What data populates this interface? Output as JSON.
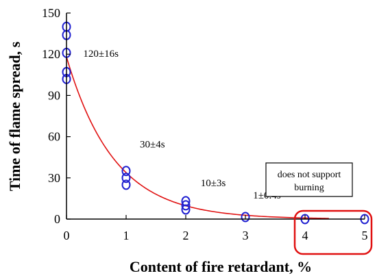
{
  "chart_data": {
    "type": "scatter",
    "xlabel": "Content of fire retardant, %",
    "ylabel": "Time of flame spread, s",
    "xlim": [
      0,
      5
    ],
    "ylim": [
      0,
      150
    ],
    "xticks": [
      "0",
      "1",
      "2",
      "3",
      "4",
      "5"
    ],
    "yticks": [
      "0",
      "30",
      "60",
      "90",
      "120",
      "150"
    ],
    "grid": false,
    "points": [
      {
        "x": 0,
        "y": 140
      },
      {
        "x": 0,
        "y": 134
      },
      {
        "x": 0,
        "y": 121
      },
      {
        "x": 0,
        "y": 107
      },
      {
        "x": 0,
        "y": 102
      },
      {
        "x": 1,
        "y": 35
      },
      {
        "x": 1,
        "y": 30
      },
      {
        "x": 1,
        "y": 25
      },
      {
        "x": 2,
        "y": 13
      },
      {
        "x": 2,
        "y": 10
      },
      {
        "x": 2,
        "y": 7
      },
      {
        "x": 3,
        "y": 1.5
      },
      {
        "x": 4,
        "y": 0
      },
      {
        "x": 5,
        "y": 0
      }
    ],
    "fit_curve": {
      "type": "exponential",
      "a": 118,
      "b": 1.25,
      "x_from": 0,
      "x_to": 4.4
    },
    "annotations": [
      {
        "text": "120±16s",
        "x": 0.28,
        "y": 118
      },
      {
        "text": "30±4s",
        "x": 1.23,
        "y": 52
      },
      {
        "text": "10±3s",
        "x": 2.25,
        "y": 24
      },
      {
        "text": "1±0.4s",
        "x": 3.13,
        "y": 15
      }
    ],
    "note_box": {
      "lines": [
        "does not support",
        "burning"
      ]
    },
    "colors": {
      "points": "#1f1fd0",
      "curve": "#e01010",
      "highlight": "#e01010"
    }
  }
}
